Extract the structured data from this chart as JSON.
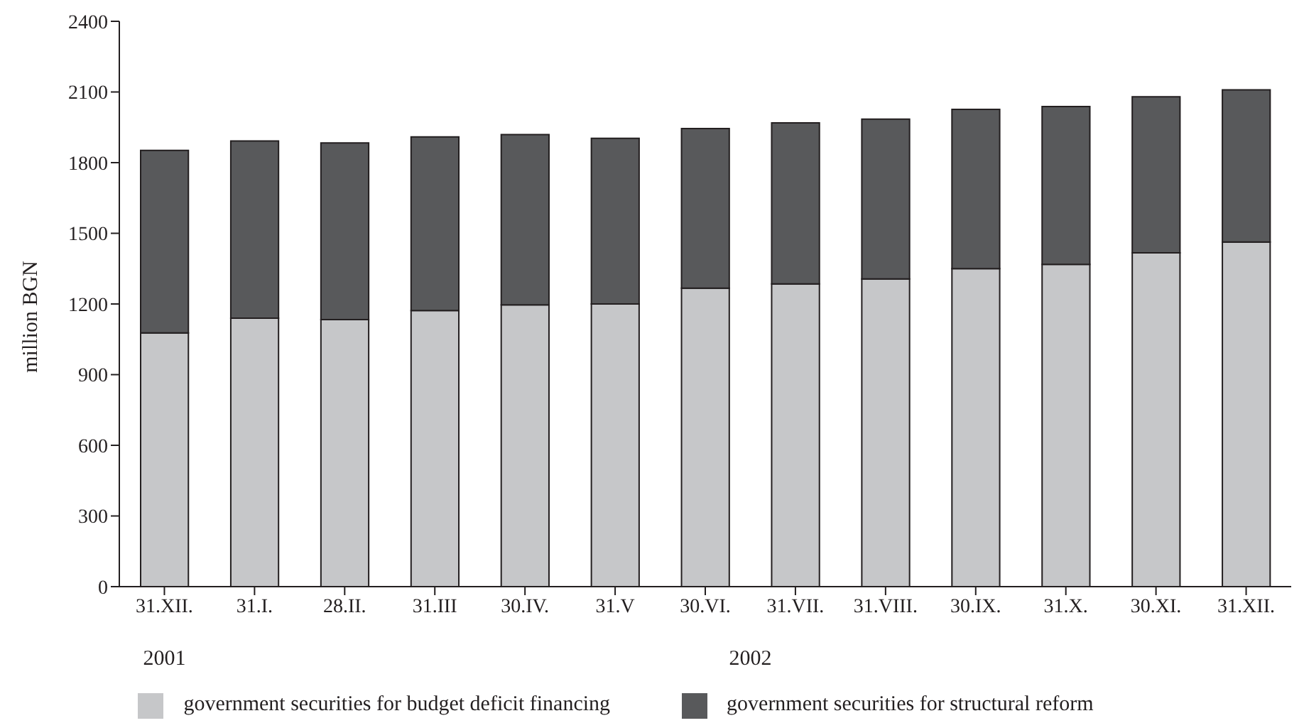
{
  "chart_data": {
    "type": "bar",
    "stacked": true,
    "ylabel": "million BGN",
    "categories": [
      "31.XII.",
      "31.I.",
      "28.II.",
      "31.III",
      "30.IV.",
      "31.V",
      "30.VI.",
      "31.VII.",
      "31.VIII.",
      "30.IX.",
      "31.X.",
      "30.XI.",
      "31.XII."
    ],
    "series": [
      {
        "name": "government securities for budget deficit financing",
        "color": "#c6c7c9",
        "values": [
          1077,
          1140,
          1134,
          1172,
          1196,
          1200,
          1267,
          1285,
          1306,
          1350,
          1368,
          1417,
          1463
        ]
      },
      {
        "name": "government securities for structural reform",
        "color": "#58595b",
        "values": [
          775,
          752,
          750,
          737,
          723,
          703,
          678,
          684,
          679,
          676,
          670,
          663,
          646
        ]
      }
    ],
    "ylim": [
      0,
      2400
    ],
    "yticks": [
      0,
      300,
      600,
      900,
      1200,
      1500,
      1800,
      2100,
      2400
    ],
    "legend": "bottom",
    "annotations": [
      "2001",
      "2002"
    ]
  }
}
